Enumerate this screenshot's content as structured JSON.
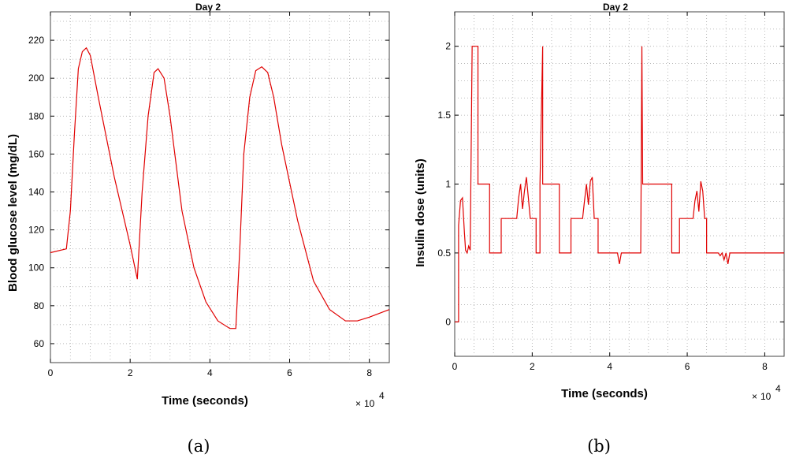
{
  "chart_data": [
    {
      "type": "line",
      "title": "Day 2",
      "xlabel": "Time (seconds)",
      "ylabel": "Blood glucose level (mg/dL)",
      "x_exponent_label": "10",
      "x_exponent_power": "4",
      "caption": "(a)",
      "xlim": [
        0,
        8.5
      ],
      "ylim": [
        50,
        235
      ],
      "xticks": [
        0,
        2,
        4,
        6,
        8
      ],
      "yticks": [
        60,
        80,
        100,
        120,
        140,
        160,
        180,
        200,
        220
      ],
      "line_color": "#e00000",
      "grid": true,
      "series": [
        {
          "x": [
            0,
            0.4,
            0.5,
            0.6,
            0.7,
            0.8,
            0.9,
            1.0,
            1.2,
            1.6,
            2.0,
            2.18,
            2.3,
            2.45,
            2.6,
            2.7,
            2.85,
            3.0,
            3.3,
            3.6,
            3.9,
            4.2,
            4.5,
            4.65,
            4.75,
            4.85,
            5.0,
            5.15,
            5.3,
            5.45,
            5.6,
            5.8,
            6.2,
            6.6,
            7.0,
            7.4,
            7.7,
            8.0,
            8.5
          ],
          "y": [
            108,
            110,
            130,
            170,
            205,
            214,
            216,
            212,
            190,
            148,
            112,
            94,
            140,
            180,
            203,
            205,
            200,
            180,
            130,
            100,
            82,
            72,
            68,
            68,
            110,
            160,
            190,
            204,
            206,
            203,
            190,
            165,
            125,
            93,
            78,
            72,
            72,
            74,
            78
          ]
        }
      ]
    },
    {
      "type": "line",
      "title": "Day 2",
      "xlabel": "Time (seconds)",
      "ylabel": "Insulin dose (units)",
      "x_exponent_label": "10",
      "x_exponent_power": "4",
      "caption": "(b)",
      "xlim": [
        0,
        8.5
      ],
      "ylim": [
        -0.25,
        2.25
      ],
      "xticks": [
        0,
        2,
        4,
        6,
        8
      ],
      "yticks": [
        0,
        0.5,
        1,
        1.5,
        2
      ],
      "line_color": "#e00000",
      "grid": true,
      "series": [
        {
          "x": [
            0,
            0.1,
            0.1,
            0.15,
            0.2,
            0.25,
            0.28,
            0.32,
            0.36,
            0.4,
            0.45,
            0.45,
            0.6,
            0.6,
            0.9,
            0.9,
            1.2,
            1.2,
            1.6,
            1.65,
            1.7,
            1.75,
            1.8,
            1.85,
            1.9,
            1.95,
            2.0,
            2.05,
            2.1,
            2.1,
            2.2,
            2.2,
            2.27,
            2.27,
            2.33,
            2.33,
            2.7,
            2.7,
            3.0,
            3.0,
            3.3,
            3.35,
            3.4,
            3.45,
            3.5,
            3.55,
            3.6,
            3.65,
            3.7,
            3.7,
            4.2,
            4.25,
            4.3,
            4.3,
            4.8,
            4.8,
            4.83,
            4.85,
            4.85,
            5.6,
            5.6,
            5.8,
            5.8,
            6.15,
            6.2,
            6.25,
            6.3,
            6.35,
            6.4,
            6.45,
            6.5,
            6.5,
            6.8,
            6.85,
            6.9,
            6.95,
            7.0,
            7.05,
            7.1,
            8.5
          ],
          "y": [
            0,
            0,
            0.7,
            0.88,
            0.9,
            0.65,
            0.52,
            0.5,
            0.55,
            0.52,
            2,
            2,
            2,
            1,
            1,
            0.5,
            0.5,
            0.75,
            0.75,
            0.9,
            1.0,
            0.82,
            0.95,
            1.05,
            0.9,
            0.75,
            0.75,
            0.75,
            0.75,
            0.5,
            0.5,
            1,
            2,
            1,
            1,
            1,
            1,
            0.5,
            0.5,
            0.75,
            0.75,
            0.88,
            1.0,
            0.85,
            1.02,
            1.05,
            0.75,
            0.75,
            0.75,
            0.5,
            0.5,
            0.42,
            0.5,
            0.5,
            0.5,
            0.5,
            2,
            1,
            1,
            1,
            0.5,
            0.5,
            0.75,
            0.75,
            0.88,
            0.95,
            0.8,
            1.02,
            0.95,
            0.75,
            0.75,
            0.5,
            0.5,
            0.48,
            0.5,
            0.45,
            0.5,
            0.42,
            0.5,
            0.5
          ]
        }
      ]
    }
  ]
}
